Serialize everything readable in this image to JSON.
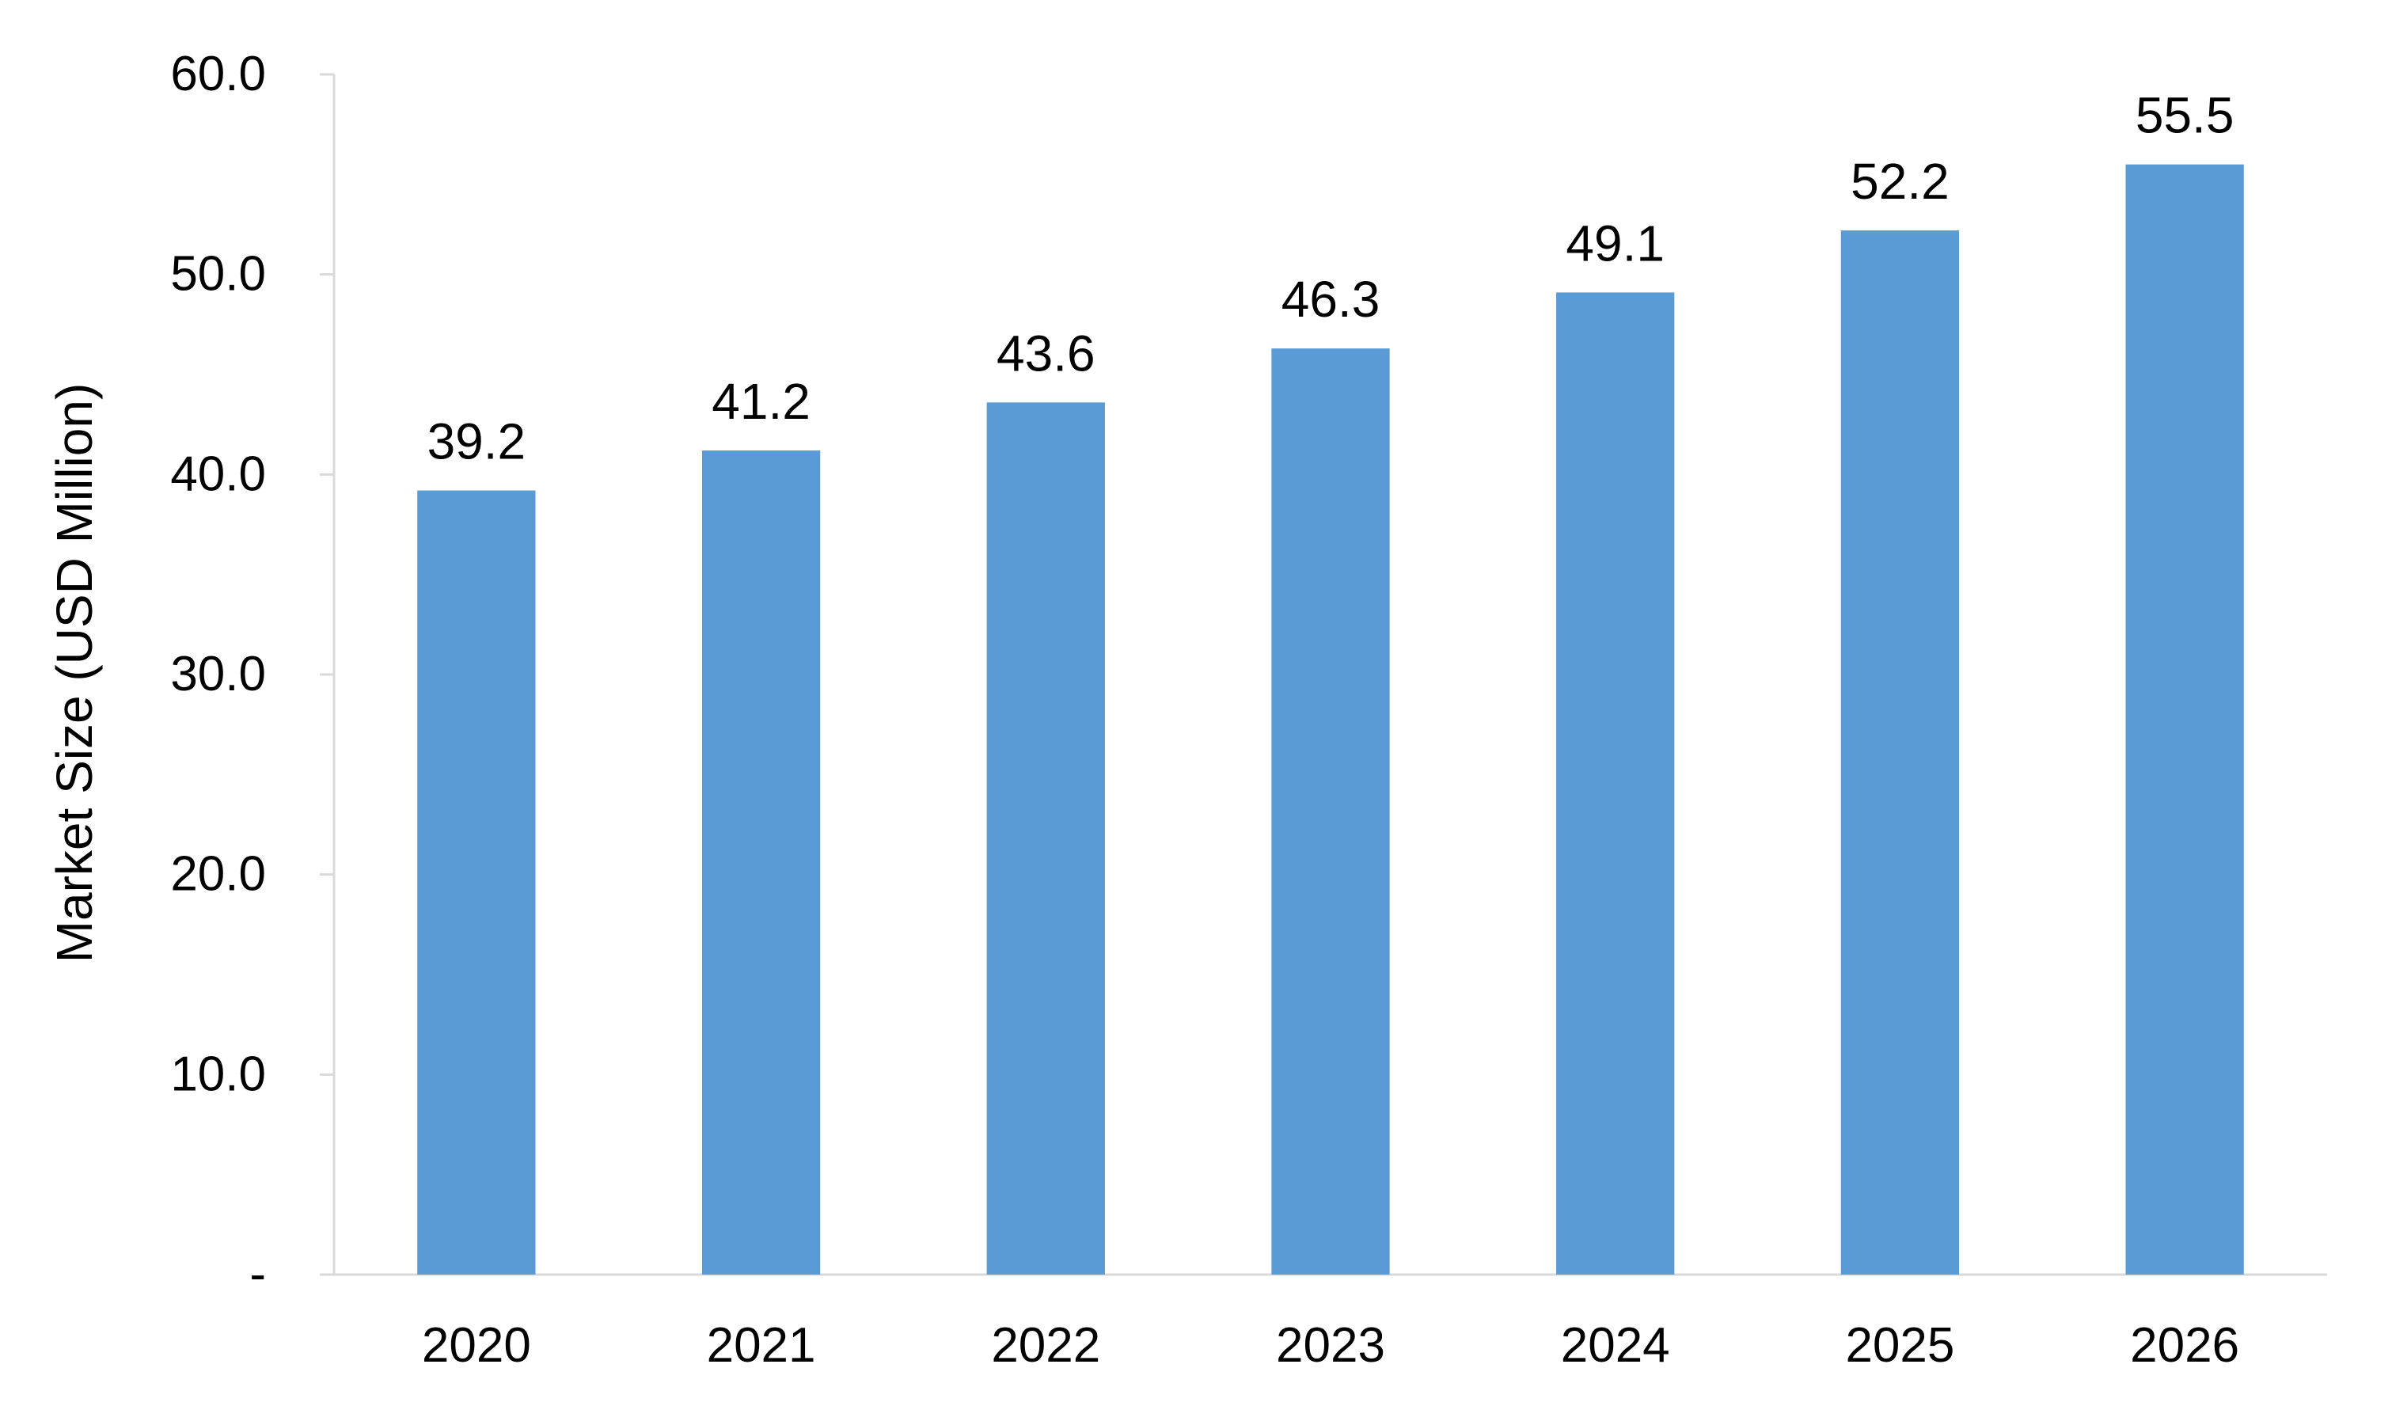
{
  "chart_data": {
    "type": "bar",
    "title": "",
    "xlabel": "",
    "ylabel": "Market Size (USD Million)",
    "categories": [
      "2020",
      "2021",
      "2022",
      "2023",
      "2024",
      "2025",
      "2026"
    ],
    "series": [
      {
        "values": [
          39.2,
          41.2,
          43.6,
          46.3,
          49.1,
          52.2,
          55.5
        ],
        "data_labels": [
          "39.2",
          "41.2",
          "43.6",
          "46.3",
          "49.1",
          "52.2",
          "55.5"
        ],
        "color": "#5B9BD5"
      }
    ],
    "ylim": [
      0,
      60
    ],
    "yticks": [
      0,
      10,
      20,
      30,
      40,
      50,
      60
    ],
    "ytick_labels": [
      "-",
      "10.0",
      "20.0",
      "30.0",
      "40.0",
      "50.0",
      "60.0"
    ],
    "grid": false,
    "legend": "none",
    "axis_color": "#D9D9D9"
  }
}
